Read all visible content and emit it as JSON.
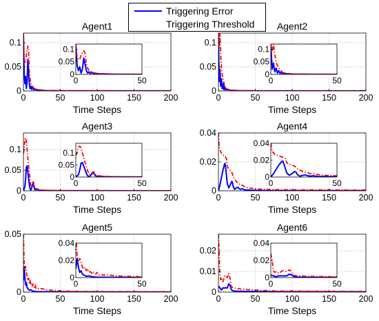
{
  "figure": {
    "background": "#ffffff"
  },
  "colors": {
    "error": "#0000ff",
    "threshold": "#ff0000",
    "grid": "#b0b0b0"
  },
  "legend": {
    "placement": "top-center",
    "items": [
      {
        "label": "Triggering Error",
        "style": "solid",
        "color": "#0000ff"
      },
      {
        "label": "Triggering Threshold",
        "style": "dash-dot",
        "color": "#ff0000"
      }
    ]
  },
  "chart_data": [
    {
      "type": "line",
      "title": "Agent1",
      "xlabel": "Time Steps",
      "xlim": [
        0,
        200
      ],
      "ylim": [
        0,
        0.12
      ],
      "xticks": [
        0,
        50,
        100,
        150,
        200
      ],
      "xtick_labels": [
        "0",
        "50",
        "100",
        "150",
        "200"
      ],
      "yticks": [
        0,
        0.05,
        0.1
      ],
      "ytick_labels": [
        "0",
        "0.05",
        "0.1"
      ],
      "grid": true,
      "series": [
        {
          "name": "Triggering Error",
          "style": "solid",
          "color": "#0000ff",
          "x": [
            0,
            1,
            2,
            3,
            4,
            5,
            6,
            7,
            8,
            9,
            10,
            11,
            12,
            14,
            16,
            18,
            20,
            25,
            30,
            40,
            60,
            200
          ],
          "y": [
            0.12,
            0.035,
            0.015,
            0.03,
            0.005,
            0.02,
            0.065,
            0.04,
            0.015,
            0.005,
            0.01,
            0.003,
            0.008,
            0.002,
            0.004,
            0.001,
            0.002,
            0.001,
            0.0005,
            0.0005,
            0.0002,
            0.0001
          ]
        },
        {
          "name": "Triggering Threshold",
          "style": "dash-dot",
          "color": "#ff0000",
          "x": [
            0,
            1,
            2,
            3,
            4,
            5,
            6,
            7,
            8,
            9,
            10,
            12,
            14,
            16,
            20,
            25,
            30,
            40,
            60,
            200
          ],
          "y": [
            0.12,
            0.065,
            0.06,
            0.06,
            0.075,
            0.085,
            0.093,
            0.085,
            0.04,
            0.025,
            0.015,
            0.01,
            0.006,
            0.004,
            0.003,
            0.002,
            0.001,
            0.0008,
            0.0005,
            0.0003
          ]
        }
      ],
      "inset": {
        "xlim": [
          0,
          50
        ],
        "ylim": [
          0,
          0.12
        ],
        "xticks": [
          0,
          50
        ],
        "xtick_labels": [
          "0",
          "50"
        ],
        "yticks": [
          0,
          0.05,
          0.1
        ],
        "ytick_labels": [
          "0",
          "0.05",
          "0.1"
        ]
      }
    },
    {
      "type": "line",
      "title": "Agent2",
      "xlabel": "Time Steps",
      "xlim": [
        0,
        200
      ],
      "ylim": [
        0,
        0.12
      ],
      "xticks": [
        0,
        50,
        100,
        150,
        200
      ],
      "xtick_labels": [
        "0",
        "50",
        "100",
        "150",
        "200"
      ],
      "yticks": [
        0,
        0.05,
        0.1
      ],
      "ytick_labels": [
        "0",
        "0.05",
        "0.1"
      ],
      "grid": true,
      "series": [
        {
          "name": "Triggering Error",
          "style": "solid",
          "color": "#0000ff",
          "x": [
            0,
            1,
            2,
            3,
            4,
            5,
            6,
            7,
            8,
            9,
            10,
            12,
            14,
            16,
            20,
            25,
            30,
            40,
            60,
            200
          ],
          "y": [
            0.12,
            0.02,
            0.045,
            0.01,
            0.025,
            0.005,
            0.015,
            0.003,
            0.01,
            0.002,
            0.005,
            0.002,
            0.003,
            0.001,
            0.001,
            0.0008,
            0.0005,
            0.0003,
            0.0002,
            0.0001
          ]
        },
        {
          "name": "Triggering Threshold",
          "style": "dash-dot",
          "color": "#ff0000",
          "x": [
            0,
            1,
            2,
            3,
            4,
            5,
            6,
            7,
            8,
            9,
            10,
            12,
            14,
            16,
            20,
            25,
            30,
            40,
            60,
            200
          ],
          "y": [
            0.12,
            0.09,
            0.12,
            0.08,
            0.05,
            0.035,
            0.025,
            0.02,
            0.012,
            0.008,
            0.006,
            0.004,
            0.003,
            0.002,
            0.0015,
            0.001,
            0.0008,
            0.0005,
            0.0003,
            0.0002
          ]
        }
      ],
      "inset": {
        "xlim": [
          0,
          50
        ],
        "ylim": [
          0,
          0.12
        ],
        "xticks": [
          0,
          50
        ],
        "xtick_labels": [
          "0",
          "50"
        ],
        "yticks": [
          0,
          0.05,
          0.1
        ],
        "ytick_labels": [
          "0",
          "0.05",
          "0.1"
        ]
      }
    },
    {
      "type": "line",
      "title": "Agent3",
      "xlabel": "Time Steps",
      "xlim": [
        0,
        200
      ],
      "ylim": [
        0,
        0.14
      ],
      "xticks": [
        0,
        50,
        100,
        150,
        200
      ],
      "xtick_labels": [
        "0",
        "50",
        "100",
        "150",
        "200"
      ],
      "yticks": [
        0,
        0.05,
        0.1
      ],
      "ytick_labels": [
        "0",
        "0.05",
        "0.1"
      ],
      "grid": true,
      "series": [
        {
          "name": "Triggering Error",
          "style": "solid",
          "color": "#0000ff",
          "x": [
            0,
            2,
            3,
            4,
            5,
            6,
            7,
            8,
            9,
            10,
            11,
            12,
            13,
            14,
            15,
            16,
            18,
            20,
            22,
            25,
            30,
            40,
            60,
            200
          ],
          "y": [
            0,
            0.01,
            0.03,
            0.058,
            0.06,
            0.045,
            0.03,
            0.015,
            0.005,
            0.002,
            0.005,
            0.013,
            0.018,
            0.012,
            0.005,
            0.002,
            0.004,
            0.002,
            0.001,
            0.001,
            0.0008,
            0.0005,
            0.0003,
            0.0001
          ]
        },
        {
          "name": "Triggering Threshold",
          "style": "dash-dot",
          "color": "#ff0000",
          "x": [
            0,
            1,
            2,
            3,
            4,
            5,
            6,
            7,
            8,
            9,
            10,
            11,
            12,
            13,
            14,
            15,
            16,
            18,
            20,
            25,
            30,
            40,
            60,
            200
          ],
          "y": [
            0.09,
            0.1,
            0.125,
            0.128,
            0.12,
            0.1,
            0.08,
            0.06,
            0.045,
            0.025,
            0.012,
            0.01,
            0.015,
            0.022,
            0.02,
            0.01,
            0.006,
            0.005,
            0.004,
            0.002,
            0.0015,
            0.001,
            0.0006,
            0.0003
          ]
        }
      ],
      "inset": {
        "xlim": [
          0,
          50
        ],
        "ylim": [
          0,
          0.14
        ],
        "xticks": [
          0,
          50
        ],
        "xtick_labels": [
          "0",
          "50"
        ],
        "yticks": [
          0,
          0.05,
          0.1
        ],
        "ytick_labels": [
          "0",
          "0.05",
          "0.1"
        ]
      }
    },
    {
      "type": "line",
      "title": "Agent4",
      "xlabel": "Time Steps",
      "xlim": [
        0,
        200
      ],
      "ylim": [
        0,
        0.04
      ],
      "xticks": [
        0,
        50,
        100,
        150,
        200
      ],
      "xtick_labels": [
        "0",
        "50",
        "100",
        "150",
        "200"
      ],
      "yticks": [
        0,
        0.02,
        0.04
      ],
      "ytick_labels": [
        "0",
        "0.02",
        "0.04"
      ],
      "grid": true,
      "series": [
        {
          "name": "Triggering Error",
          "style": "solid",
          "color": "#0000ff",
          "x": [
            0,
            2,
            4,
            6,
            8,
            9,
            10,
            11,
            12,
            14,
            16,
            18,
            19,
            20,
            22,
            24,
            26,
            28,
            30,
            32,
            34,
            36,
            40,
            45,
            50,
            60,
            80,
            200
          ],
          "y": [
            0,
            0.004,
            0.009,
            0.014,
            0.018,
            0.019,
            0.015,
            0.01,
            0.005,
            0.002,
            0.004,
            0.0065,
            0.006,
            0.003,
            0.001,
            0.002,
            0.0025,
            0.0015,
            0.001,
            0.0015,
            0.001,
            0.0005,
            0.0006,
            0.0004,
            0.0003,
            0.0002,
            0.0001,
            0.0001
          ]
        },
        {
          "name": "Triggering Threshold",
          "style": "dash-dot",
          "color": "#ff0000",
          "x": [
            0,
            1,
            2,
            3,
            4,
            6,
            8,
            10,
            11,
            12,
            14,
            16,
            18,
            20,
            22,
            25,
            28,
            30,
            32,
            35,
            40,
            50,
            60,
            80,
            200
          ],
          "y": [
            0.04,
            0.03,
            0.029,
            0.027,
            0.026,
            0.025,
            0.024,
            0.023,
            0.022,
            0.017,
            0.015,
            0.014,
            0.013,
            0.01,
            0.008,
            0.006,
            0.005,
            0.004,
            0.004,
            0.003,
            0.002,
            0.0015,
            0.001,
            0.0008,
            0.0005
          ]
        }
      ],
      "inset": {
        "xlim": [
          0,
          50
        ],
        "ylim": [
          0,
          0.04
        ],
        "xticks": [
          0,
          50
        ],
        "xtick_labels": [
          "0",
          "50"
        ],
        "yticks": [
          0,
          0.02,
          0.04
        ],
        "ytick_labels": [
          "0",
          "0.02",
          "0.04"
        ]
      }
    },
    {
      "type": "line",
      "title": "Agent5",
      "xlabel": "Time Steps",
      "xlim": [
        0,
        200
      ],
      "ylim": [
        0,
        0.05
      ],
      "xticks": [
        0,
        50,
        100,
        150,
        200
      ],
      "xtick_labels": [
        "0",
        "50",
        "100",
        "150",
        "200"
      ],
      "yticks": [
        0,
        0.05
      ],
      "ytick_labels": [
        "0",
        "0.05"
      ],
      "grid": true,
      "series": [
        {
          "name": "Triggering Error",
          "style": "solid",
          "color": "#0000ff",
          "x": [
            0,
            1,
            2,
            3,
            4,
            5,
            6,
            8,
            10,
            12,
            14,
            16,
            20,
            30,
            50,
            200
          ],
          "y": [
            0.01,
            0.022,
            0.012,
            0.006,
            0.008,
            0.004,
            0.003,
            0.0015,
            0.002,
            0.001,
            0.0008,
            0.0005,
            0.0004,
            0.0003,
            0.0002,
            0.0001
          ]
        },
        {
          "name": "Triggering Threshold",
          "style": "dash-dot",
          "color": "#ff0000",
          "x": [
            0,
            1,
            2,
            3,
            4,
            5,
            6,
            7,
            8,
            9,
            10,
            11,
            12,
            13,
            14,
            15,
            16,
            17,
            18,
            20,
            25,
            30,
            40,
            50,
            60,
            80,
            200
          ],
          "y": [
            0.05,
            0.025,
            0.02,
            0.022,
            0.018,
            0.012,
            0.01,
            0.012,
            0.008,
            0.01,
            0.006,
            0.007,
            0.005,
            0.007,
            0.005,
            0.004,
            0.006,
            0.003,
            0.003,
            0.003,
            0.003,
            0.002,
            0.0015,
            0.001,
            0.0008,
            0.0005,
            0.0003
          ]
        }
      ],
      "inset": {
        "xlim": [
          0,
          50
        ],
        "ylim": [
          0,
          0.04
        ],
        "xticks": [
          0,
          50
        ],
        "xtick_labels": [
          "0",
          "50"
        ],
        "yticks": [
          0,
          0.02,
          0.04
        ],
        "ytick_labels": [
          "0",
          "0.02",
          "0.04"
        ]
      }
    },
    {
      "type": "line",
      "title": "Agent6",
      "xlabel": "Time Steps",
      "xlim": [
        0,
        200
      ],
      "ylim": [
        0,
        0.028
      ],
      "xticks": [
        0,
        50,
        100,
        150,
        200
      ],
      "xtick_labels": [
        "0",
        "50",
        "100",
        "150",
        "200"
      ],
      "yticks": [
        0,
        0.01,
        0.02
      ],
      "ytick_labels": [
        "0",
        "0.01",
        "0.02"
      ],
      "grid": true,
      "series": [
        {
          "name": "Triggering Error",
          "style": "solid",
          "color": "#0000ff",
          "x": [
            0,
            2,
            4,
            6,
            8,
            10,
            12,
            14,
            15,
            16,
            17,
            18,
            20,
            22,
            25,
            30,
            40,
            50,
            60,
            200
          ],
          "y": [
            0.003,
            0.002,
            0.001,
            0.002,
            0.002,
            0.002,
            0.002,
            0.004,
            0.0035,
            0.003,
            0.0015,
            0.001,
            0.0006,
            0.0005,
            0.0004,
            0.0004,
            0.0003,
            0.0003,
            0.0002,
            0.0001
          ]
        },
        {
          "name": "Triggering Threshold",
          "style": "dash-dot",
          "color": "#ff0000",
          "x": [
            0,
            1,
            2,
            3,
            4,
            5,
            6,
            7,
            8,
            9,
            10,
            12,
            14,
            15,
            16,
            17,
            18,
            20,
            25,
            30,
            40,
            50,
            60,
            80,
            200
          ],
          "y": [
            0.028,
            0.02,
            0.008,
            0.006,
            0.007,
            0.006,
            0.005,
            0.006,
            0.007,
            0.008,
            0.0075,
            0.007,
            0.009,
            0.008,
            0.006,
            0.003,
            0.0025,
            0.002,
            0.0018,
            0.0015,
            0.0012,
            0.001,
            0.0008,
            0.0005,
            0.0003
          ]
        }
      ],
      "inset": {
        "xlim": [
          0,
          50
        ],
        "ylim": [
          0,
          0.04
        ],
        "xticks": [
          0,
          50
        ],
        "xtick_labels": [
          "0",
          "50"
        ],
        "yticks": [
          0,
          0.02,
          0.04
        ],
        "ytick_labels": [
          "0",
          "0.02",
          "0.04"
        ]
      }
    }
  ]
}
